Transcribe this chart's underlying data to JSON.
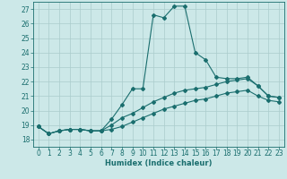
{
  "title": "",
  "xlabel": "Humidex (Indice chaleur)",
  "ylabel": "",
  "xlim": [
    -0.5,
    23.5
  ],
  "ylim": [
    17.5,
    27.5
  ],
  "xticks": [
    0,
    1,
    2,
    3,
    4,
    5,
    6,
    7,
    8,
    9,
    10,
    11,
    12,
    13,
    14,
    15,
    16,
    17,
    18,
    19,
    20,
    21,
    22,
    23
  ],
  "yticks": [
    18,
    19,
    20,
    21,
    22,
    23,
    24,
    25,
    26,
    27
  ],
  "background_color": "#cce8e8",
  "line_color": "#1a6e6e",
  "grid_color": "#aacccc",
  "line1_x": [
    0,
    1,
    2,
    3,
    4,
    5,
    6,
    7,
    8,
    9,
    10,
    11,
    12,
    13,
    14,
    15,
    16,
    17,
    18,
    19,
    20,
    21,
    22,
    23
  ],
  "line1_y": [
    18.9,
    18.4,
    18.6,
    18.7,
    18.7,
    18.6,
    18.6,
    19.4,
    20.4,
    21.5,
    21.5,
    26.6,
    26.4,
    27.2,
    27.2,
    24.0,
    23.5,
    22.3,
    22.2,
    22.2,
    22.3,
    21.7,
    21.0,
    20.9
  ],
  "line2_x": [
    0,
    1,
    2,
    3,
    4,
    5,
    6,
    7,
    8,
    9,
    10,
    11,
    12,
    13,
    14,
    15,
    16,
    17,
    18,
    19,
    20,
    21,
    22,
    23
  ],
  "line2_y": [
    18.9,
    18.4,
    18.6,
    18.7,
    18.7,
    18.6,
    18.6,
    19.0,
    19.5,
    19.8,
    20.2,
    20.6,
    20.9,
    21.2,
    21.4,
    21.5,
    21.6,
    21.8,
    22.0,
    22.1,
    22.2,
    21.7,
    21.0,
    20.9
  ],
  "line3_x": [
    0,
    1,
    2,
    3,
    4,
    5,
    6,
    7,
    8,
    9,
    10,
    11,
    12,
    13,
    14,
    15,
    16,
    17,
    18,
    19,
    20,
    21,
    22,
    23
  ],
  "line3_y": [
    18.9,
    18.4,
    18.6,
    18.7,
    18.7,
    18.6,
    18.6,
    18.7,
    18.9,
    19.2,
    19.5,
    19.8,
    20.1,
    20.3,
    20.5,
    20.7,
    20.8,
    21.0,
    21.2,
    21.3,
    21.4,
    21.0,
    20.7,
    20.6
  ],
  "marker": "D",
  "markersize": 2.0,
  "linewidth": 0.8,
  "font_color": "#1a6e6e",
  "label_fontsize": 6.0,
  "tick_fontsize": 5.5
}
